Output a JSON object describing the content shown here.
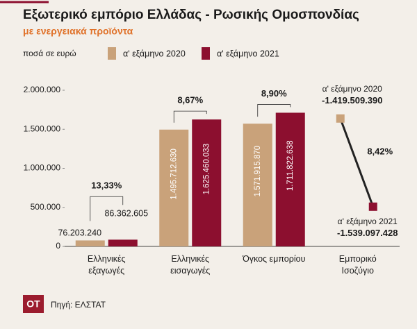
{
  "chart_data": {
    "type": "bar",
    "title": "Εξωτερικό εμπόριο Ελλάδας - Ρωσικής Ομοσπονδίας",
    "subtitle": "με ενεργειακά προϊόντα",
    "unit_note": "ποσά σε ευρώ",
    "categories": [
      "Ελληνικές εξαγωγές",
      "Ελληνικές εισαγωγές",
      "Όγκος εμπορίου",
      "Εμπορικό Ισοζύγιο"
    ],
    "series": [
      {
        "name": "α' εξάμηνο 2020",
        "color": "#c9a27a",
        "values": [
          76203.24,
          1495712.63,
          1571915.87,
          -1419509.39
        ],
        "value_labels": [
          "76.203.240",
          "1.495.712.630",
          "1.571.915.870",
          "-1.419.509.390"
        ]
      },
      {
        "name": "α' εξάμηνο 2021",
        "color": "#8c0f2f",
        "values": [
          86362.605,
          1625460.033,
          1711822.638,
          -1539097.428
        ],
        "value_labels": [
          "86.362.605",
          "1.625.460.033",
          "1.711.822.638",
          "-1.539.097.428"
        ]
      }
    ],
    "changes": [
      13.33,
      8.67,
      8.9,
      8.42
    ],
    "change_labels": [
      "13,33%",
      "8,67%",
      "8,90%",
      "8,42%"
    ],
    "ylim": [
      0,
      2000000
    ],
    "yticks": [
      0,
      {
        "value": 500000,
        "label": "500.000"
      },
      {
        "value": 1000000,
        "label": "1.000.000"
      },
      {
        "value": 1500000,
        "label": "1.500.000"
      },
      {
        "value": 2000000,
        "label": "2.000.000"
      }
    ],
    "y2lim": [
      -1560000,
      -1400000
    ]
  },
  "footer": {
    "logo": "OT",
    "source": "Πηγή: ΕΛΣΤΑΤ"
  }
}
